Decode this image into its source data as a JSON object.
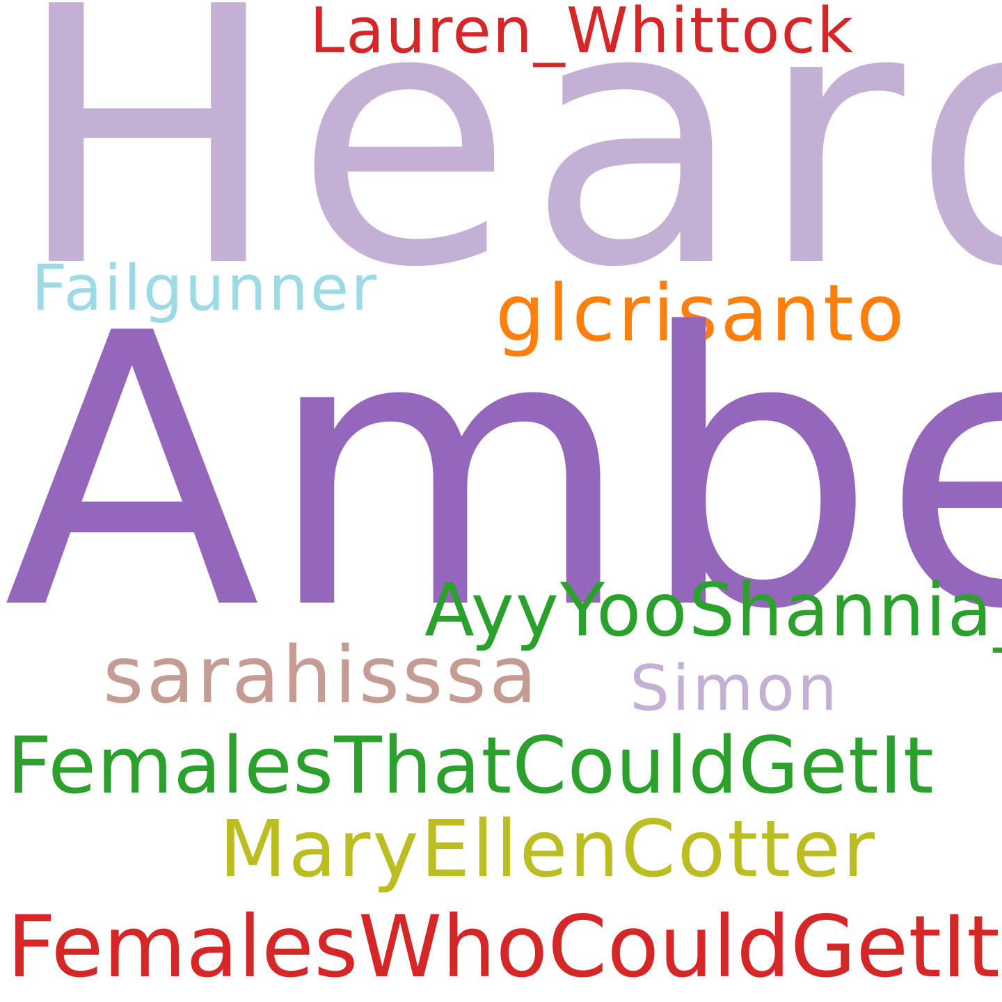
{
  "words": [
    {
      "text": "Heard",
      "color": "#c5b0d5"
    },
    {
      "text": "Lauren_Whittock",
      "color": "#d62728"
    },
    {
      "text": "Failgunner",
      "color": "#9edae5"
    },
    {
      "text": "glcrisanto",
      "color": "#ff7f0e"
    },
    {
      "text": "Amber",
      "color": "#9467bd"
    },
    {
      "text": "AyyYooShannia_",
      "color": "#2ca02c"
    },
    {
      "text": "sarahisssa",
      "color": "#c49c94"
    },
    {
      "text": "Simon",
      "color": "#c5b0d5"
    },
    {
      "text": "FemalesThatCouldGetIt",
      "color": "#2ca02c"
    },
    {
      "text": "MaryEllenCotter",
      "color": "#bcbd22"
    },
    {
      "text": "FemalesWhoCouldGetIt",
      "color": "#d62728"
    }
  ]
}
